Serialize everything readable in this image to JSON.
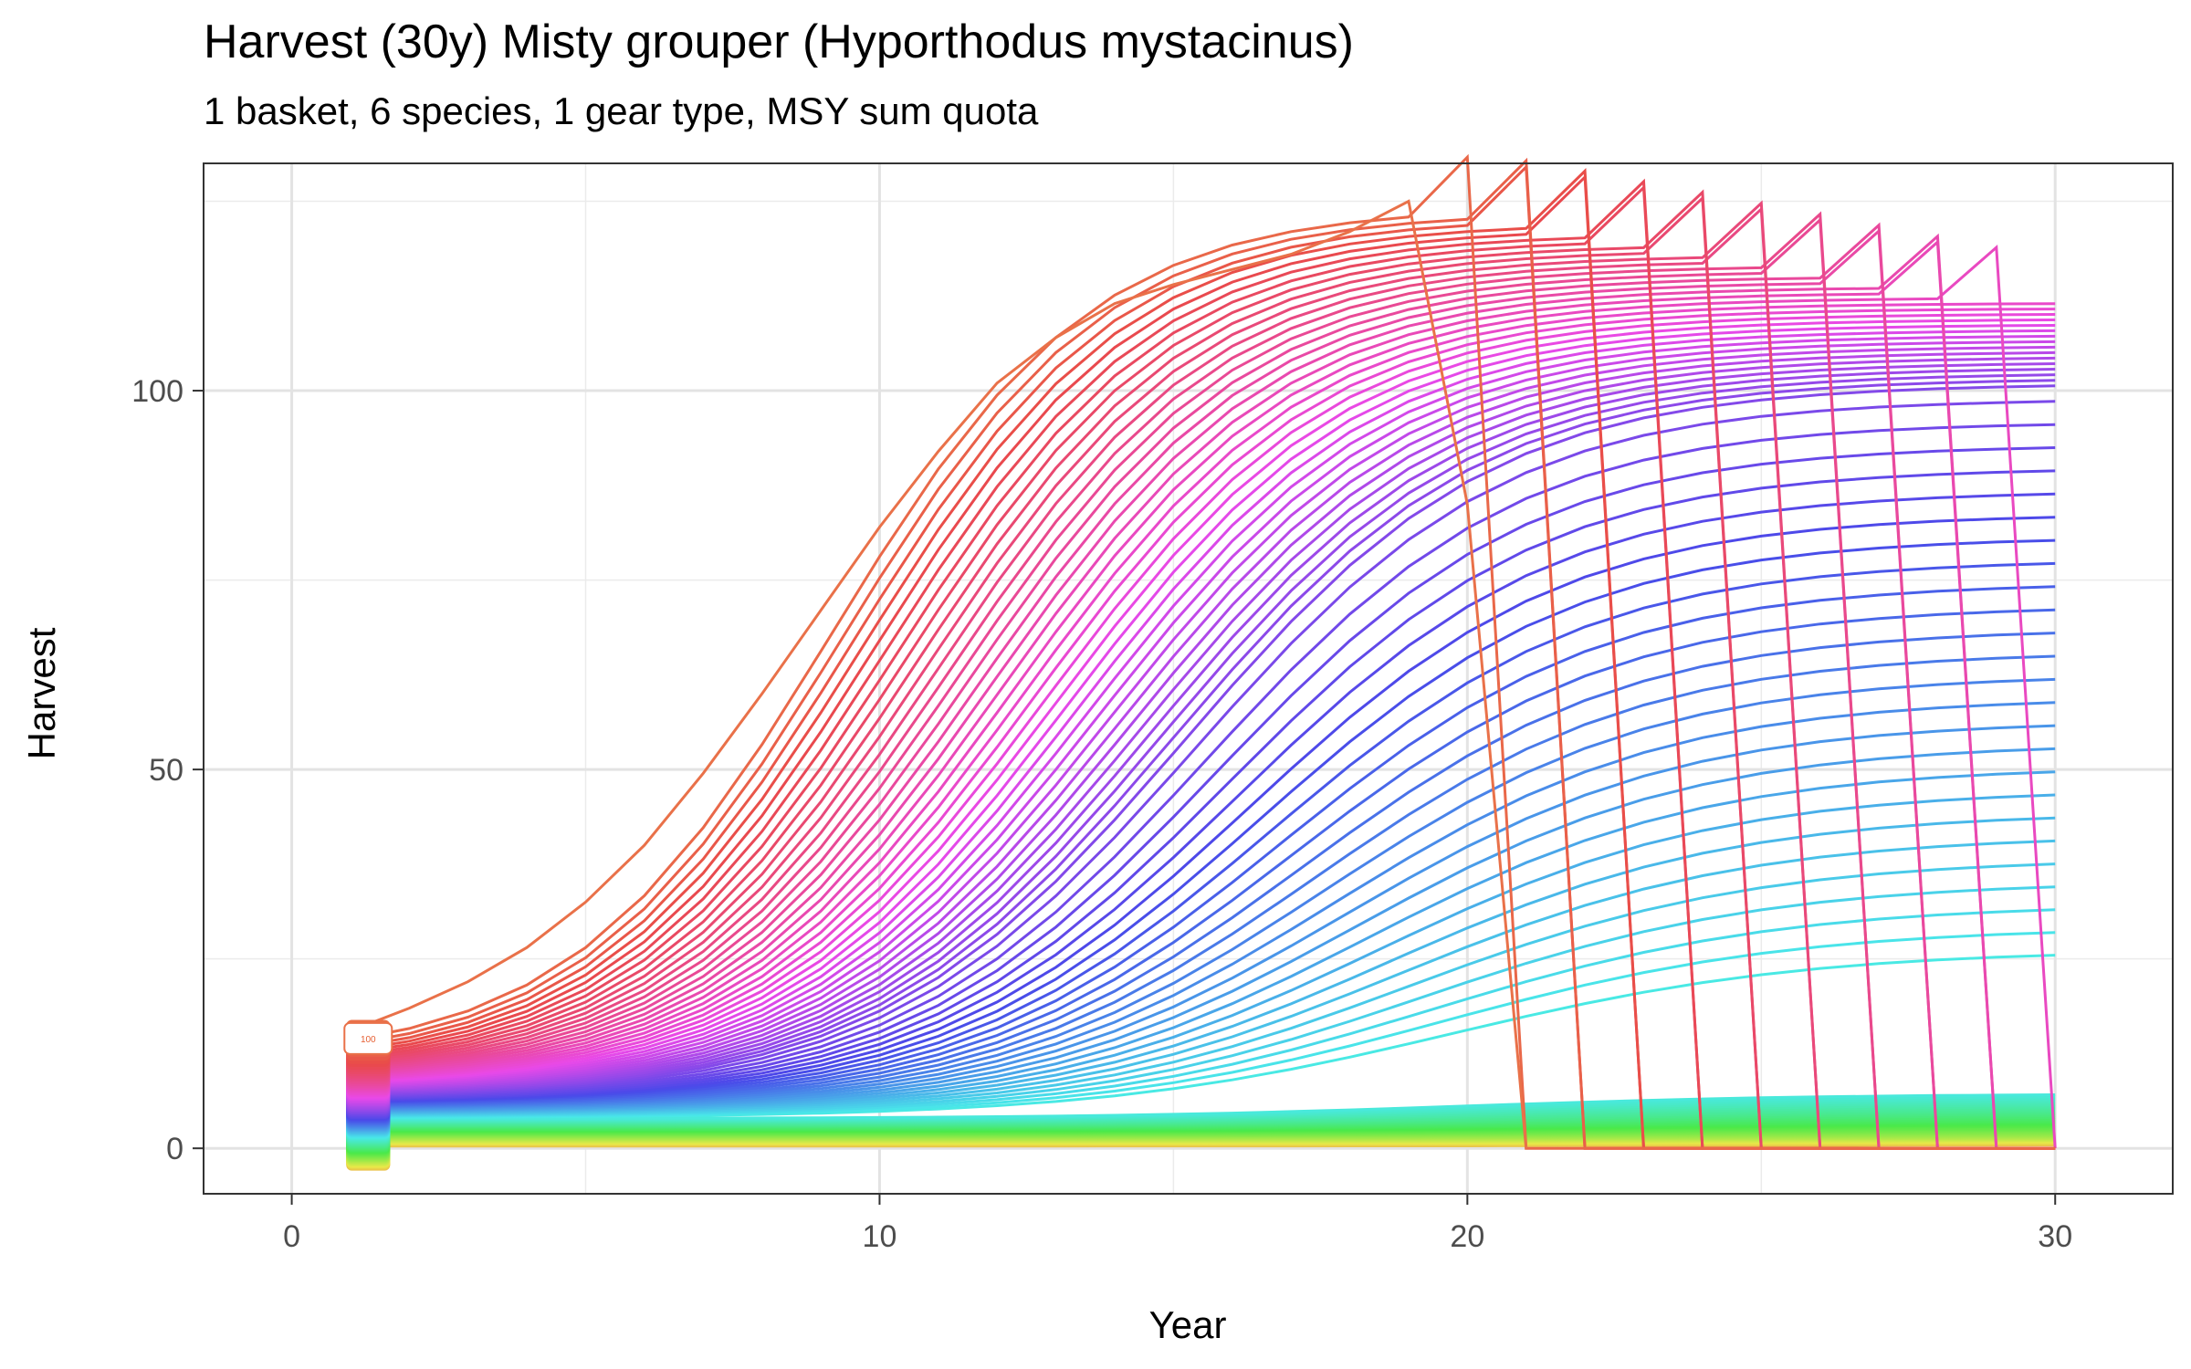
{
  "chart_data": {
    "type": "line",
    "title": "Harvest (30y) Misty grouper (Hyporthodus mystacinus)",
    "subtitle": "1 basket, 6 species, 1 gear type, MSY sum quota",
    "xlabel": "Year",
    "ylabel": "Harvest",
    "xlim": [
      -1.5,
      32
    ],
    "ylim": [
      -6,
      130
    ],
    "x_ticks": [
      0,
      10,
      20,
      30
    ],
    "y_ticks": [
      0,
      50,
      100
    ],
    "x_minor": [
      5,
      15,
      25
    ],
    "y_minor": [
      25,
      75,
      125
    ],
    "grid": true,
    "legend": "none",
    "series_count": 100,
    "series_note_label": "100",
    "years": [
      1,
      30
    ],
    "color_scale": "hue-descending",
    "sample_series": [
      {
        "name": "1",
        "x": [
          1,
          2,
          3,
          4,
          5,
          6,
          7,
          8,
          9,
          10,
          11,
          12,
          13,
          14,
          15,
          16,
          17,
          18,
          19,
          20,
          21
        ],
        "values": [
          15.5,
          18.5,
          22,
          26.5,
          32.5,
          40,
          49.5,
          60,
          71,
          82,
          92,
          101,
          107,
          111.5,
          114,
          116,
          118,
          121,
          125,
          85,
          0
        ]
      },
      {
        "name": "100",
        "x": [
          1,
          30
        ],
        "values": [
          0.5,
          0.5
        ]
      }
    ],
    "label_box_text": "100"
  }
}
